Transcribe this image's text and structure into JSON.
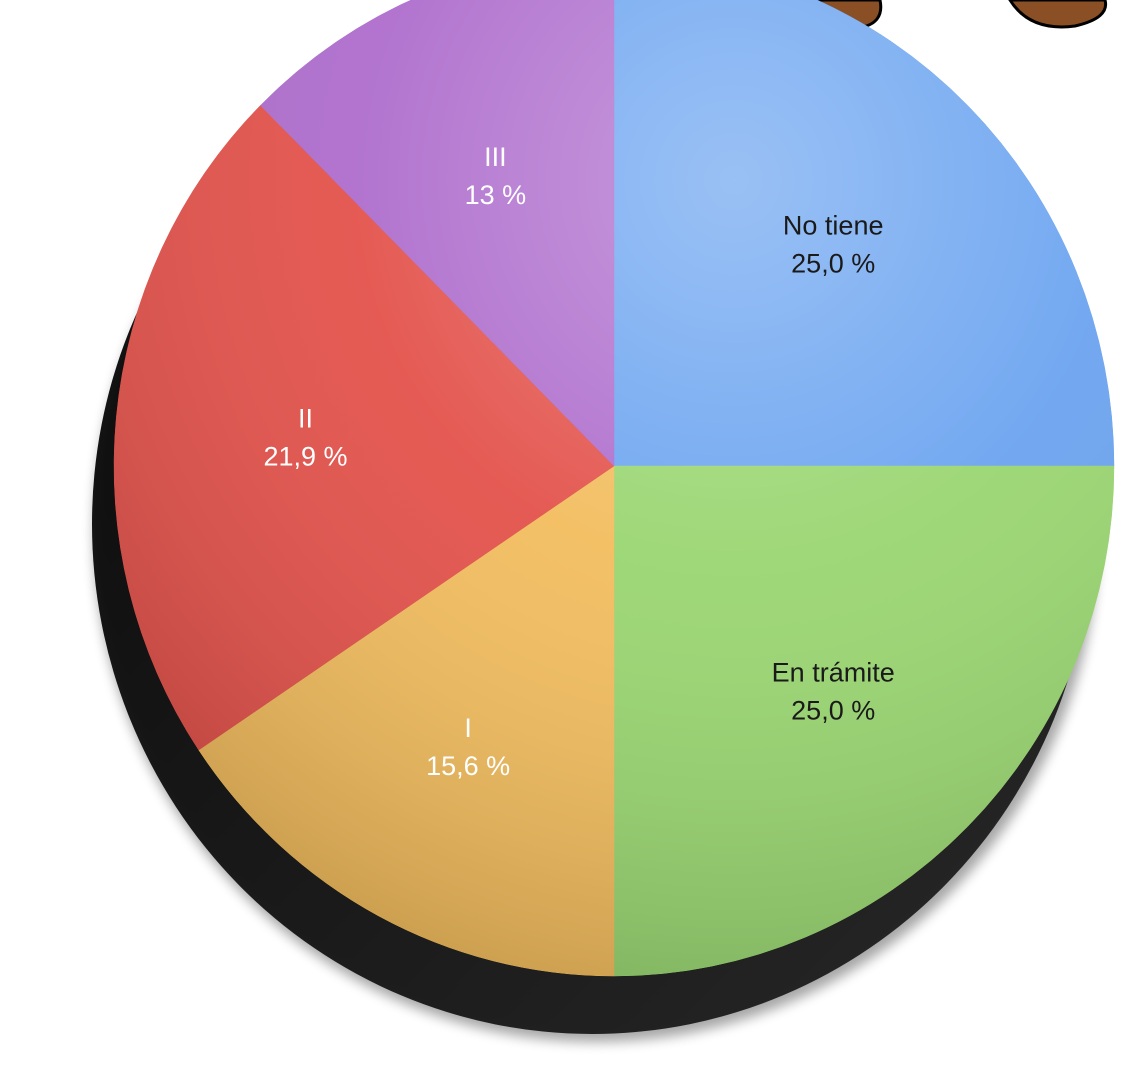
{
  "chart_data": {
    "type": "pie",
    "slices": [
      {
        "label": "No tiene",
        "value": 25.0,
        "display": "25,0 %",
        "color": "#6aa3f0",
        "label_color": "#1a1a1a"
      },
      {
        "label": "En trámite",
        "value": 25.0,
        "display": "25,0 %",
        "color": "#98d56f",
        "label_color": "#1a1a1a"
      },
      {
        "label": "I",
        "value": 15.6,
        "display": "15,6 %",
        "color": "#f2bc5c",
        "label_color": "#ffffff"
      },
      {
        "label": "II",
        "value": 21.9,
        "display": "21,9 %",
        "color": "#e35049",
        "label_color": "#ffffff"
      },
      {
        "label": "III",
        "value": 12.5,
        "display": "13 %",
        "color": "#ad6bcc",
        "label_color": "#ffffff"
      }
    ],
    "start_angle": "top",
    "direction": "clockwise",
    "legend": "none",
    "style": "3d-tilted"
  },
  "decoration": {
    "name": "mascot-feet",
    "color": "#8a4f25"
  }
}
